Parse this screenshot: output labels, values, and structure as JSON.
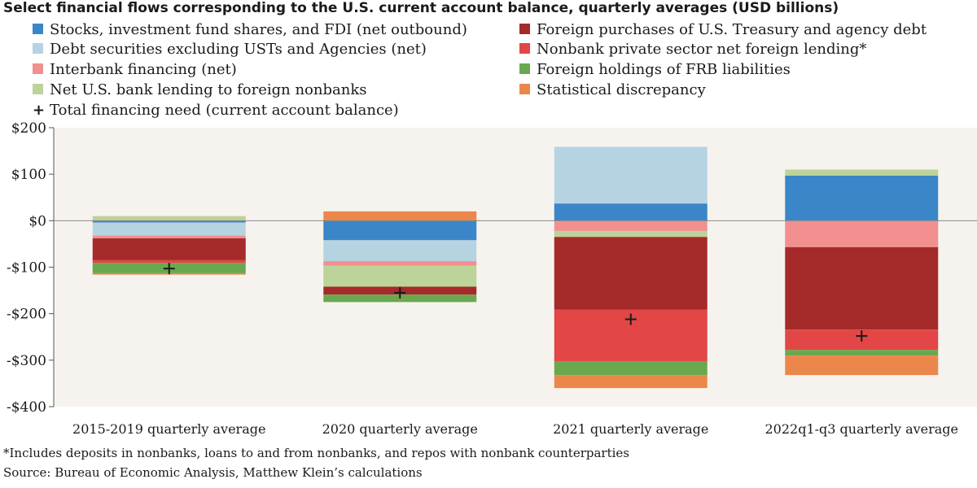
{
  "chart_data": {
    "type": "bar",
    "stacked": true,
    "title": "Select financial flows corresponding to the U.S. current account balance, quarterly averages (USD billions)",
    "categories": [
      "2015-2019 quarterly average",
      "2020 quarterly average",
      "2021 quarterly average",
      "2022q1-q3 quarterly average"
    ],
    "ylim": [
      -400,
      200
    ],
    "yticks": [
      200,
      100,
      0,
      -100,
      -200,
      -300,
      -400
    ],
    "ytick_labels": [
      "$200",
      "$100",
      "$0",
      "-$100",
      "-$200",
      "-$300",
      "-$400"
    ],
    "series": [
      {
        "name": "Stocks, investment fund shares, and FDI (net outbound)",
        "color": "#3a86c8",
        "values": [
          -4,
          -42,
          37,
          97
        ]
      },
      {
        "name": "Debt securities excluding USTs and Agencies (net)",
        "color": "#b6d3e2",
        "values": [
          -28,
          -45,
          122,
          0
        ]
      },
      {
        "name": "Interbank financing (net)",
        "color": "#f28f8f",
        "values": [
          -6,
          -10,
          -22,
          -57
        ]
      },
      {
        "name": "Net U.S. bank lending to foreign nonbanks",
        "color": "#bcd39a",
        "values": [
          10,
          -45,
          -13,
          13
        ]
      },
      {
        "name": "Foreign purchases of U.S. Treasury and agency debt",
        "color": "#a52a2a",
        "values": [
          -47,
          -17,
          -156,
          -177
        ]
      },
      {
        "name": "Nonbank private sector net foreign lending*",
        "color": "#e24646",
        "values": [
          -6,
          0,
          -111,
          -44
        ]
      },
      {
        "name": "Foreign holdings of FRB liabilities",
        "color": "#6aa84f",
        "values": [
          -22,
          -16,
          -30,
          -12
        ]
      },
      {
        "name": "Statistical discrepancy",
        "color": "#ec874c",
        "values": [
          -3,
          20,
          -28,
          -42
        ]
      }
    ],
    "total_financing_need": {
      "name": "Total financing need (current account balance)",
      "values": [
        -103,
        -155,
        -212,
        -248
      ]
    },
    "grid": false,
    "legend_position": "top"
  },
  "legend": [
    {
      "label": "Stocks, investment fund shares, and FDI (net outbound)",
      "color": "#3a86c8"
    },
    {
      "label": "Foreign purchases of U.S. Treasury and agency debt",
      "color": "#a52a2a"
    },
    {
      "label": "Debt securities excluding USTs and Agencies (net)",
      "color": "#b6d3e2"
    },
    {
      "label": "Nonbank private sector net foreign lending*",
      "color": "#e24646"
    },
    {
      "label": "Interbank financing (net)",
      "color": "#f28f8f"
    },
    {
      "label": "Foreign holdings of FRB liabilities",
      "color": "#6aa84f"
    },
    {
      "label": "Net U.S. bank lending to foreign nonbanks",
      "color": "#bcd39a"
    },
    {
      "label": "Statistical discrepancy",
      "color": "#ec874c"
    }
  ],
  "marker_legend": {
    "symbol": "+",
    "label": "Total financing need (current account balance)"
  },
  "footnote": "*Includes deposits in nonbanks, loans to and from nonbanks, and repos with nonbank counterparties",
  "source": "Source: Bureau of Economic Analysis, Matthew Klein’s calculations",
  "colors": {
    "plot_background": "#f6f3ee",
    "axis": "#555555",
    "text": "#1a1a1a"
  }
}
